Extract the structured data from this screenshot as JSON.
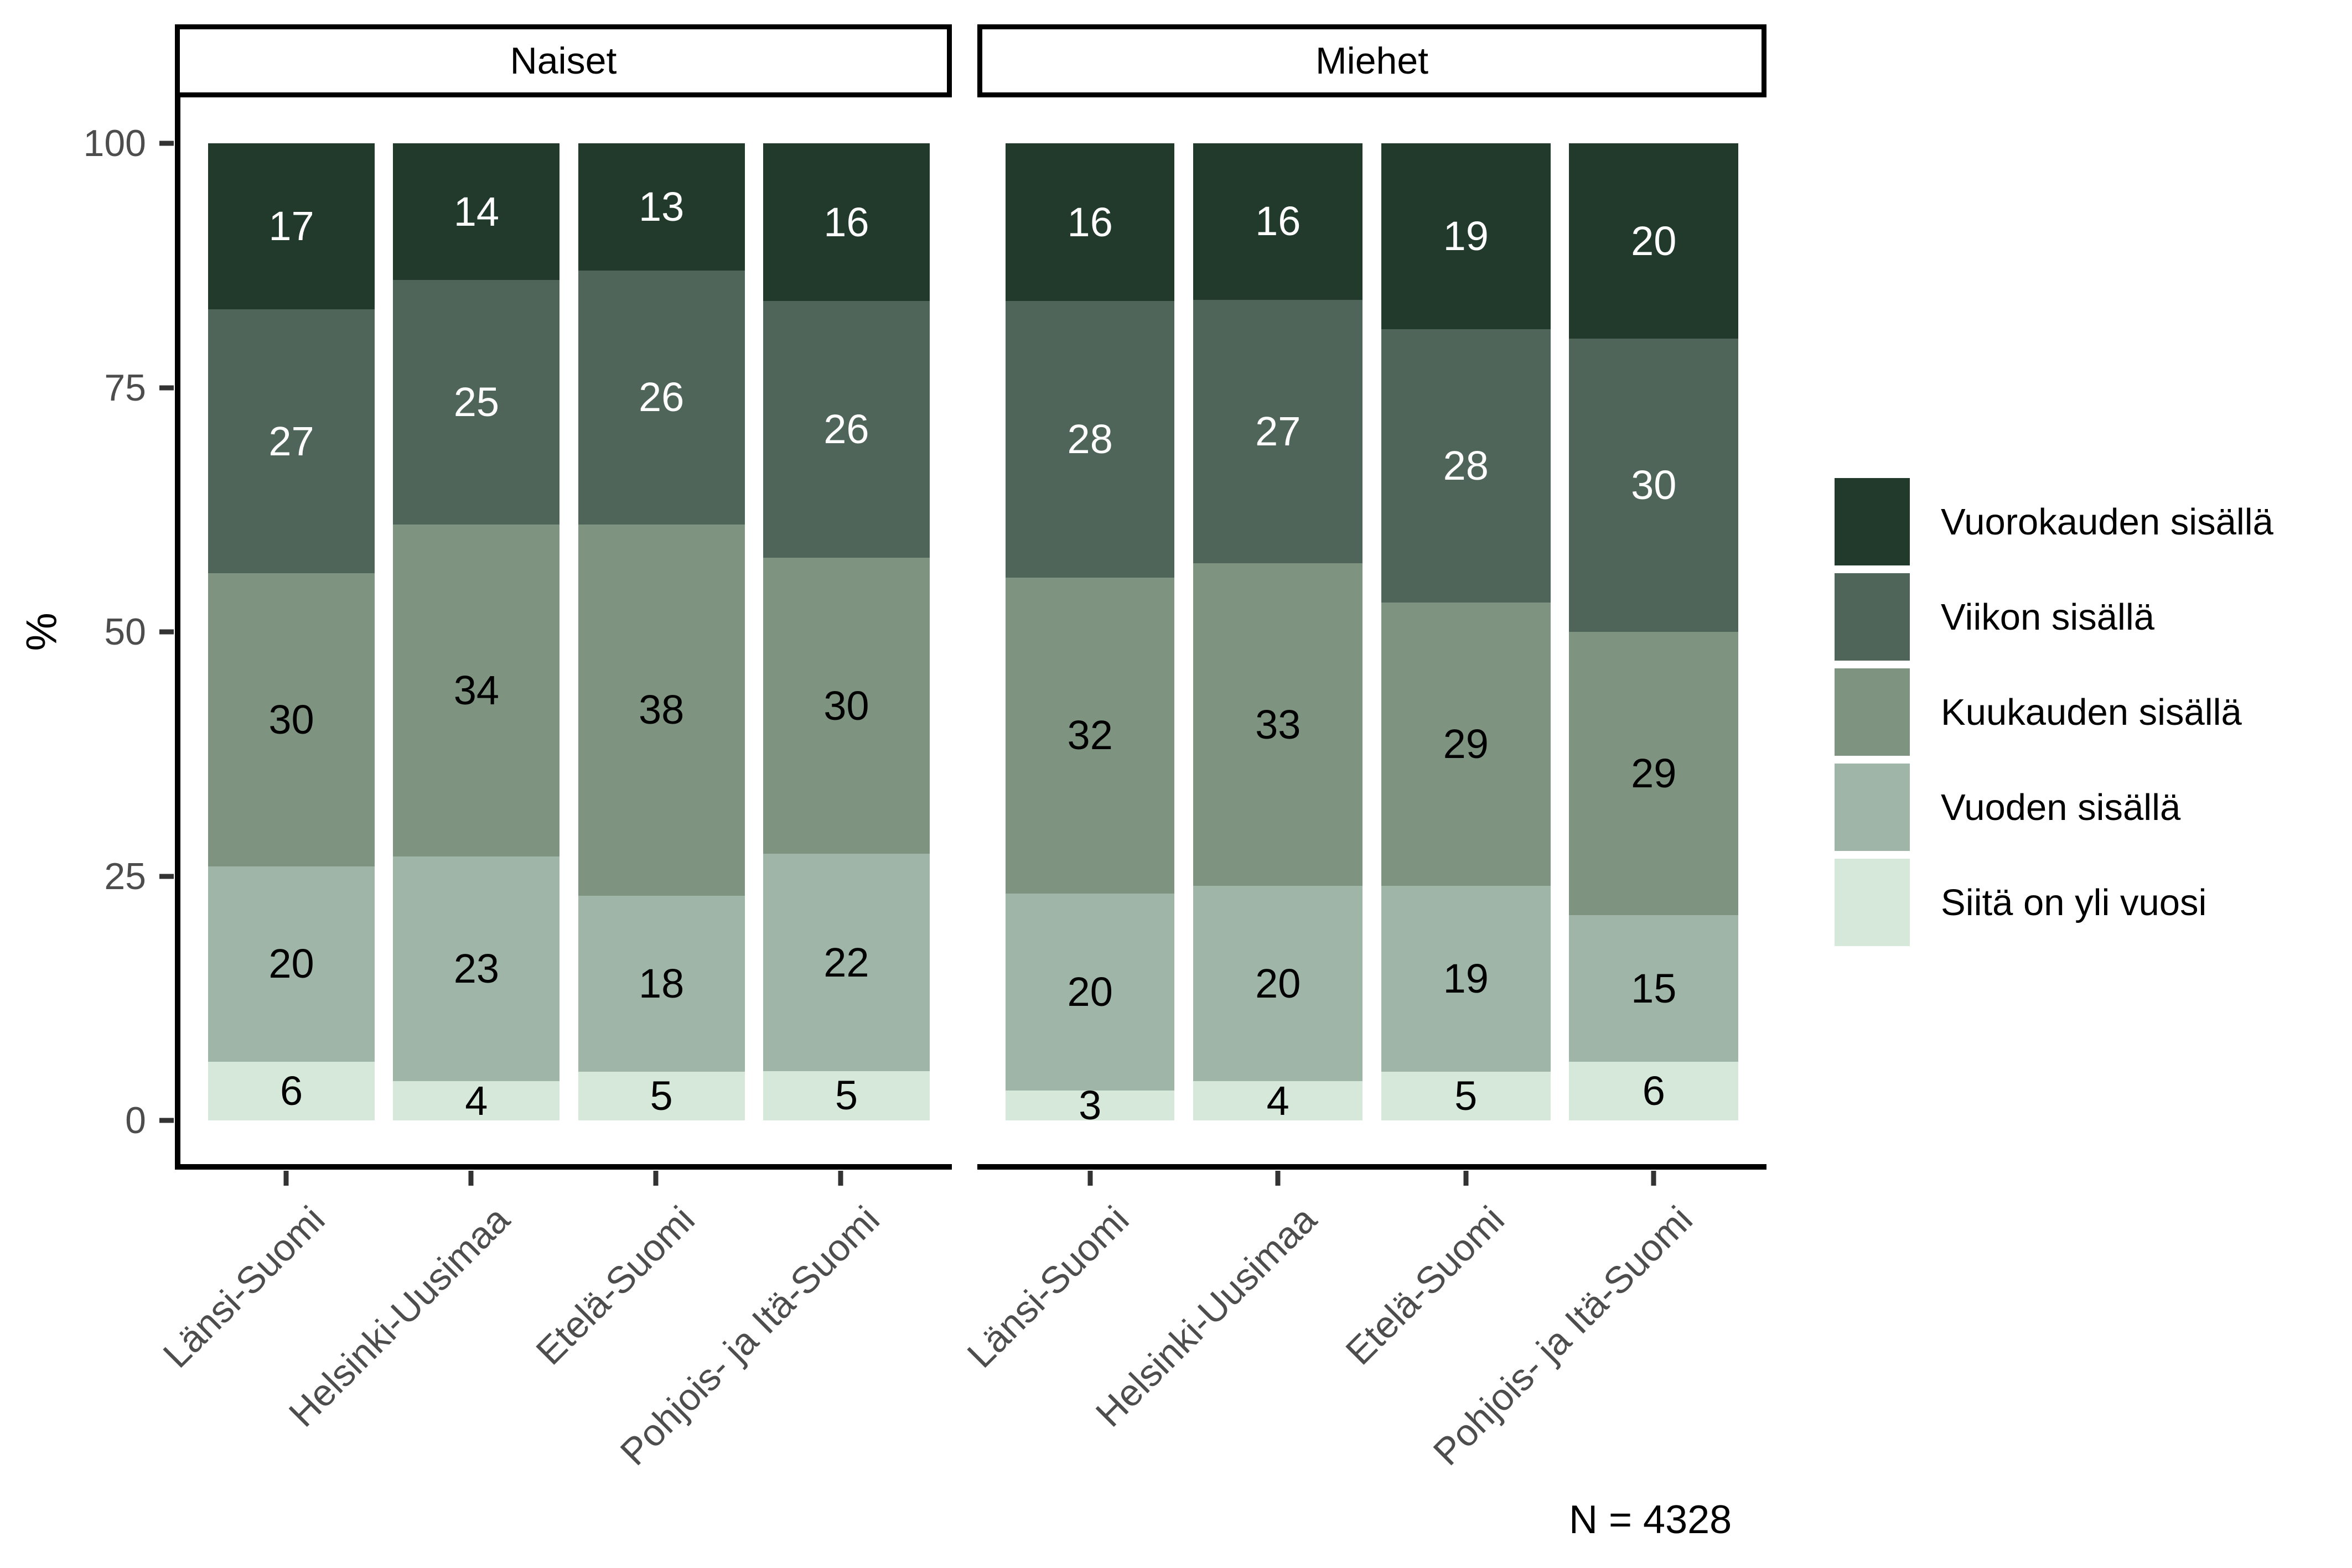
{
  "y_axis": {
    "label": "%",
    "ticks": [
      "0",
      "25",
      "50",
      "75",
      "100"
    ]
  },
  "note": "N = 4328",
  "colors": {
    "axis_text": "#4d4d4d",
    "tick_mark": "#333333",
    "axis_line": "#000000",
    "strip_border": "#000000",
    "background": "#ffffff"
  },
  "chart_data": {
    "type": "bar",
    "stacked": true,
    "orientation": "vertical",
    "unit": "%",
    "title": "",
    "ylabel": "%",
    "ylim": [
      0,
      100
    ],
    "yticks": [
      0,
      25,
      50,
      75,
      100
    ],
    "grid": false,
    "legend_position": "right",
    "annotation": "N = 4328",
    "facets": [
      "Naiset",
      "Miehet"
    ],
    "categories": [
      "Länsi-Suomi",
      "Helsinki-Uusimaa",
      "Etelä-Suomi",
      "Pohjois- ja Itä-Suomi"
    ],
    "series": [
      {
        "name": "Vuorokauden sisällä",
        "color": "#223a2c",
        "label_color": "#ffffff",
        "values": {
          "Naiset": [
            17,
            14,
            13,
            16
          ],
          "Miehet": [
            16,
            16,
            19,
            20
          ]
        }
      },
      {
        "name": "Viikon sisällä",
        "color": "#506559",
        "label_color": "#ffffff",
        "values": {
          "Naiset": [
            27,
            25,
            26,
            26
          ],
          "Miehet": [
            28,
            27,
            28,
            30
          ]
        }
      },
      {
        "name": "Kuukauden sisällä",
        "color": "#7e9480",
        "label_color": "#000000",
        "values": {
          "Naiset": [
            30,
            34,
            38,
            30
          ],
          "Miehet": [
            32,
            33,
            29,
            29
          ]
        }
      },
      {
        "name": "Vuoden sisällä",
        "color": "#9eb5a8",
        "label_color": "#000000",
        "values": {
          "Naiset": [
            20,
            23,
            18,
            22
          ],
          "Miehet": [
            20,
            20,
            19,
            15
          ]
        }
      },
      {
        "name": "Siitä on yli vuosi",
        "color": "#d5e8da",
        "label_color": "#000000",
        "values": {
          "Naiset": [
            6,
            4,
            5,
            5
          ],
          "Miehet": [
            3,
            4,
            5,
            6
          ]
        }
      }
    ]
  }
}
